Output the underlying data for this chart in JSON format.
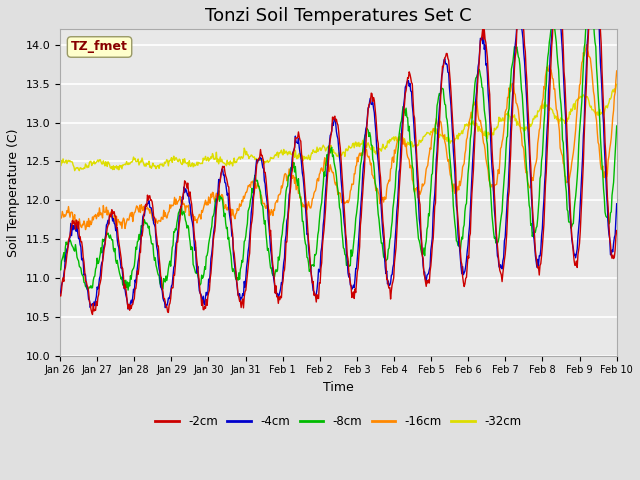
{
  "title": "Tonzi Soil Temperatures Set C",
  "xlabel": "Time",
  "ylabel": "Soil Temperature (C)",
  "annotation": "TZ_fmet",
  "ylim": [
    10.0,
    14.2
  ],
  "yticks": [
    10.0,
    10.5,
    11.0,
    11.5,
    12.0,
    12.5,
    13.0,
    13.5,
    14.0
  ],
  "xtick_labels": [
    "Jan 26",
    "Jan 27",
    "Jan 28",
    "Jan 29",
    "Jan 30",
    "Jan 31",
    "Feb 1",
    "Feb 2",
    "Feb 3",
    "Feb 4",
    "Feb 5",
    "Feb 6",
    "Feb 7",
    "Feb 8",
    "Feb 9",
    "Feb 10"
  ],
  "colors": {
    "-2cm": "#cc0000",
    "-4cm": "#0000cc",
    "-8cm": "#00bb00",
    "-16cm": "#ff8800",
    "-32cm": "#dddd00"
  },
  "legend_labels": [
    "-2cm",
    "-4cm",
    "-8cm",
    "-16cm",
    "-32cm"
  ],
  "bg_color": "#e0e0e0",
  "plot_bg_color": "#e8e8e8",
  "grid_color": "#ffffff",
  "title_fontsize": 13,
  "axis_label_fontsize": 9,
  "tick_fontsize": 8,
  "figsize": [
    6.4,
    4.8
  ],
  "dpi": 100
}
